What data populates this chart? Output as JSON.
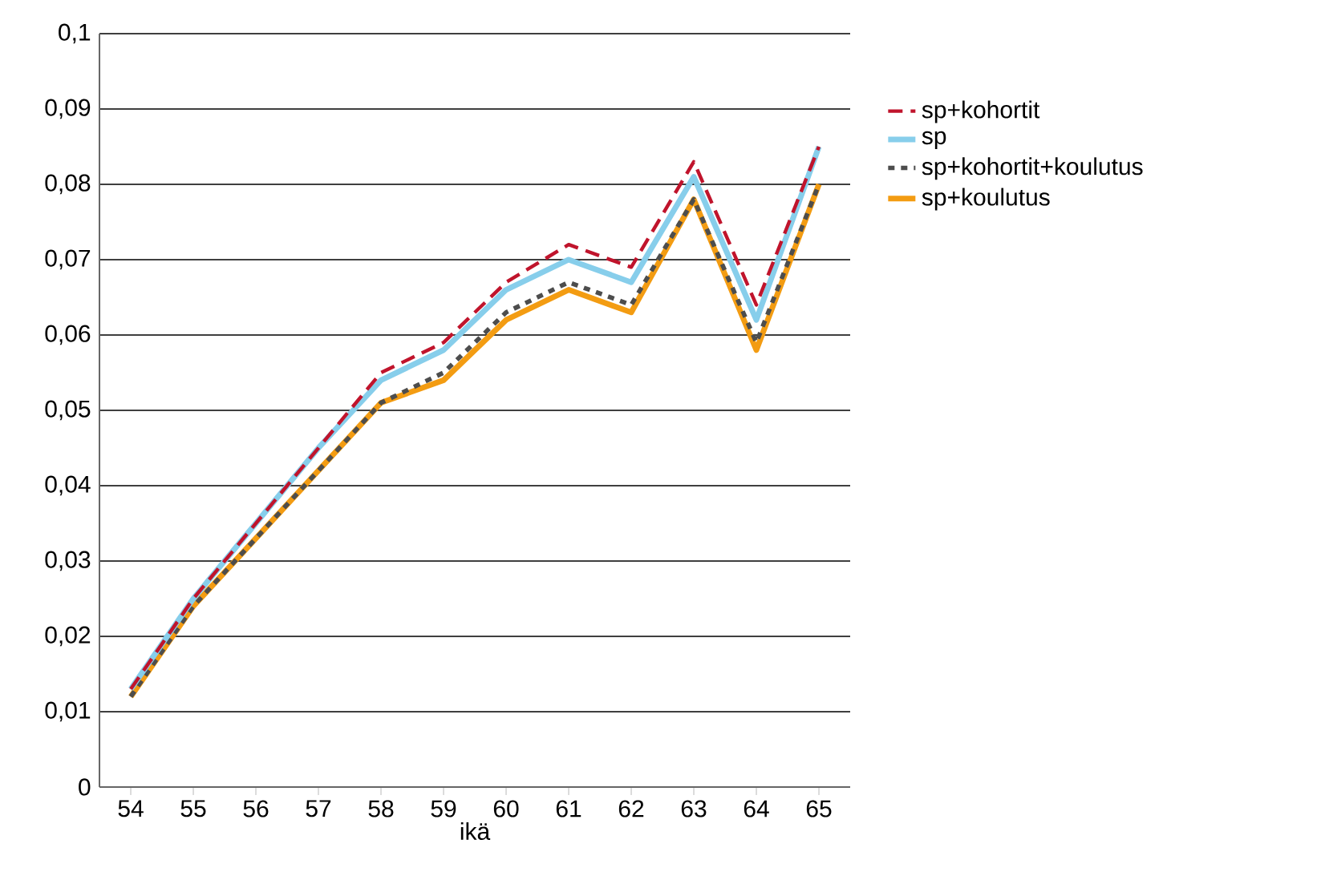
{
  "chart_data": {
    "type": "line",
    "xlabel": "ikä",
    "categories": [
      "54",
      "55",
      "56",
      "57",
      "58",
      "59",
      "60",
      "61",
      "62",
      "63",
      "64",
      "65"
    ],
    "series": [
      {
        "name": "sp+kohortit",
        "color": "#c0142c",
        "line_style": "dashed",
        "values": [
          0.013,
          0.025,
          0.035,
          0.045,
          0.055,
          0.059,
          0.067,
          0.072,
          0.069,
          0.083,
          0.064,
          0.085
        ]
      },
      {
        "name": "sp",
        "color": "#87ceeb",
        "line_style": "solid",
        "values": [
          0.013,
          0.025,
          0.035,
          0.045,
          0.054,
          0.058,
          0.066,
          0.07,
          0.067,
          0.081,
          0.062,
          0.085
        ]
      },
      {
        "name": "sp+kohortit+koulutus",
        "color": "#4d4d4d",
        "line_style": "dotted",
        "values": [
          0.012,
          0.024,
          0.033,
          0.042,
          0.051,
          0.055,
          0.063,
          0.067,
          0.064,
          0.078,
          0.059,
          0.08
        ]
      },
      {
        "name": "sp+koulutus",
        "color": "#f39c12",
        "line_style": "solid",
        "values": [
          0.012,
          0.024,
          0.033,
          0.042,
          0.051,
          0.054,
          0.062,
          0.066,
          0.063,
          0.078,
          0.058,
          0.08
        ]
      }
    ],
    "ylim": [
      0,
      0.1
    ],
    "yticks": [
      {
        "value": 0,
        "label": "0"
      },
      {
        "value": 0.01,
        "label": "0,01"
      },
      {
        "value": 0.02,
        "label": "0,02"
      },
      {
        "value": 0.03,
        "label": "0,03"
      },
      {
        "value": 0.04,
        "label": "0,04"
      },
      {
        "value": 0.05,
        "label": "0,05"
      },
      {
        "value": 0.06,
        "label": "0,06"
      },
      {
        "value": 0.07,
        "label": "0,07"
      },
      {
        "value": 0.08,
        "label": "0,08"
      },
      {
        "value": 0.09,
        "label": "0,09"
      },
      {
        "value": 0.1,
        "label": "0,1"
      }
    ],
    "grid": "y",
    "legend": "right",
    "marker": "none"
  }
}
